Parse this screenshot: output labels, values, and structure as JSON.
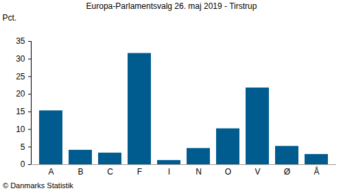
{
  "chart_data": {
    "type": "bar",
    "title": "Europa-Parlamentsvalg 26. maj 2019 - Tirstrup",
    "ylabel": "Pct.",
    "caption": "© Danmarks Statistik",
    "categories": [
      "A",
      "B",
      "C",
      "F",
      "I",
      "N",
      "O",
      "V",
      "Ø",
      "Å"
    ],
    "values": [
      15.3,
      4.1,
      3.3,
      31.6,
      1.2,
      4.6,
      10.2,
      21.8,
      5.2,
      2.9
    ],
    "color": "#005c8f",
    "ylim": [
      0,
      35
    ],
    "yticks": [
      0,
      5,
      10,
      15,
      20,
      25,
      30,
      35
    ],
    "grid": false
  }
}
